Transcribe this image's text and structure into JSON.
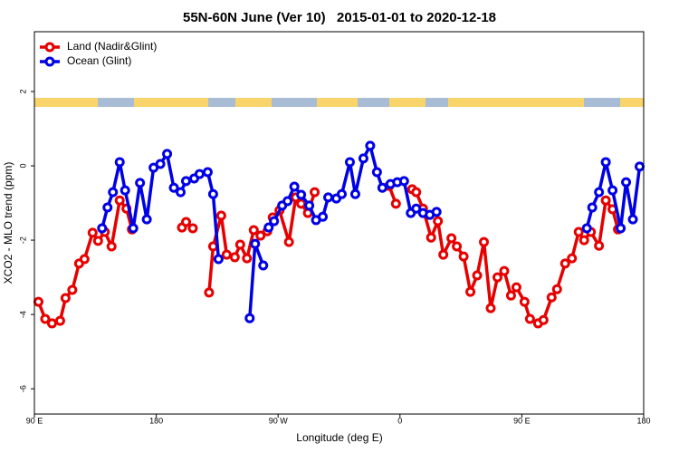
{
  "chart_data": {
    "type": "line",
    "title": "55N-60N June (Ver 10)   2015-01-01 to 2020-12-18",
    "x_label": "Longitude (deg E)",
    "y_label": "XCO2 - MLO trend (ppm)",
    "xlim": [
      90,
      540
    ],
    "xticks": [
      {
        "value": 90,
        "label": "90 E"
      },
      {
        "value": 180,
        "label": "180"
      },
      {
        "value": 270,
        "label": "90 W"
      },
      {
        "value": 360,
        "label": "0"
      },
      {
        "value": 450,
        "label": "90 E"
      },
      {
        "value": 540,
        "label": "180"
      }
    ],
    "ylim": [
      -6.68,
      3.61
    ],
    "yticks": [
      -6,
      -4,
      -2,
      0,
      2
    ],
    "legend_position": "top-left",
    "series": [
      {
        "name": "Land (Nadir&Glint)",
        "color": "#e60000",
        "x": [
          93,
          98,
          103,
          109,
          113,
          118,
          123,
          127,
          133,
          137,
          142,
          147,
          153,
          158,
          162,
          180,
          199,
          202,
          207,
          213,
          219,
          222,
          228,
          232,
          238,
          242,
          247,
          252,
          257,
          262,
          266,
          271,
          278,
          283,
          287,
          292,
          297,
          325,
          352,
          357,
          363,
          369,
          372,
          377,
          383,
          388,
          392,
          398,
          402,
          407,
          412,
          417,
          422,
          427,
          432,
          437,
          442,
          446,
          452,
          456,
          462,
          466,
          472,
          476,
          482,
          487,
          492,
          496,
          501,
          507,
          512,
          517,
          521
        ],
        "values": [
          -3.66,
          -4.12,
          -4.24,
          -4.17,
          -3.56,
          -3.34,
          -2.63,
          -2.51,
          -1.8,
          -2.02,
          -1.78,
          -2.17,
          -0.93,
          -1.15,
          -1.71,
          null,
          -1.66,
          -1.51,
          -1.68,
          null,
          -3.41,
          -2.17,
          -1.34,
          -2.39,
          -2.46,
          -2.12,
          -2.49,
          -1.73,
          -1.88,
          -1.76,
          -1.39,
          -1.2,
          -2.05,
          -0.85,
          -1.02,
          -1.27,
          -0.71,
          null,
          -0.54,
          -1.02,
          null,
          -0.63,
          -0.71,
          -1.15,
          -1.93,
          -1.49,
          -2.39,
          -1.95,
          -2.17,
          -2.44,
          -3.39,
          -2.95,
          -2.05,
          -3.83,
          -3.0,
          -2.83,
          -3.49,
          -3.27,
          -3.66,
          -4.12,
          -4.24,
          -4.15,
          -3.54,
          -3.32,
          -2.63,
          -2.49,
          -1.78,
          -2.0,
          -1.78,
          -2.15,
          -0.93,
          -1.17,
          -1.71
        ]
      },
      {
        "name": "Ocean (Glint)",
        "color": "#0000e6",
        "x": [
          140,
          144,
          148,
          153,
          157,
          163,
          168,
          173,
          178,
          183,
          188,
          193,
          198,
          202,
          208,
          212,
          218,
          222,
          226,
          237,
          249,
          253,
          259,
          261,
          263,
          267,
          273,
          277,
          282,
          287,
          293,
          298,
          303,
          307,
          313,
          317,
          323,
          327,
          333,
          338,
          343,
          347,
          353,
          358,
          363,
          368,
          372,
          377,
          382,
          387,
          442,
          498,
          502,
          507,
          512,
          517,
          523,
          527,
          532,
          537
        ],
        "values": [
          -1.68,
          -1.12,
          -0.71,
          0.1,
          -0.66,
          -1.68,
          -0.46,
          -1.44,
          -0.05,
          0.05,
          0.32,
          -0.59,
          -0.71,
          -0.41,
          -0.34,
          -0.22,
          -0.17,
          -0.76,
          -2.51,
          null,
          -4.1,
          -2.1,
          -2.68,
          null,
          -1.66,
          -1.49,
          -1.07,
          -0.95,
          -0.56,
          -0.78,
          -1.07,
          -1.46,
          -1.37,
          -0.85,
          -0.88,
          -0.76,
          0.1,
          -0.76,
          0.2,
          0.54,
          -0.17,
          -0.59,
          -0.49,
          -0.44,
          -0.41,
          -1.27,
          -1.15,
          -1.27,
          -1.32,
          -1.24,
          null,
          -1.68,
          -1.12,
          -0.71,
          0.1,
          -0.66,
          -1.68,
          -0.44,
          -1.44,
          -0.02
        ]
      }
    ]
  }
}
